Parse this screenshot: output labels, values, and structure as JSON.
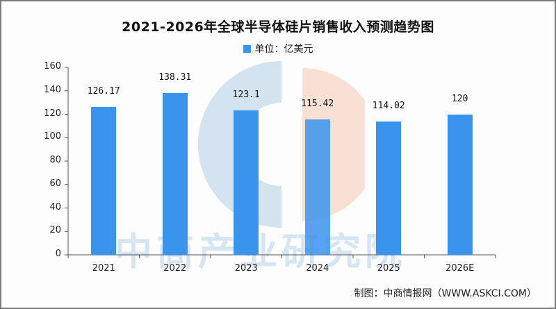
{
  "title": "2021-2026年全球半导体硅片销售收入预测趋势图",
  "legend": {
    "label": "单位：亿美元",
    "color": "#3a93ec"
  },
  "source": "制图：中商情报网（WWW.ASKCI.COM）",
  "watermark": "中商产业研究院",
  "chart_data": {
    "type": "bar",
    "title": "2021-2026年全球半导体硅片销售收入预测趋势图",
    "xlabel": "",
    "ylabel": "单位：亿美元",
    "categories": [
      "2021",
      "2022",
      "2023",
      "2024",
      "2025",
      "2026E"
    ],
    "series": [
      {
        "name": "单位：亿美元",
        "values": [
          126.17,
          138.31,
          123.1,
          115.42,
          114.02,
          120
        ],
        "color": "#3a93ec"
      }
    ],
    "value_labels": [
      "126.17",
      "138.31",
      "123.1",
      "115.42",
      "114.02",
      "120"
    ],
    "ylim": [
      0,
      160
    ],
    "yticks": [
      0,
      20,
      40,
      60,
      80,
      100,
      120,
      140,
      160
    ],
    "grid": false,
    "legend_position": "top"
  }
}
